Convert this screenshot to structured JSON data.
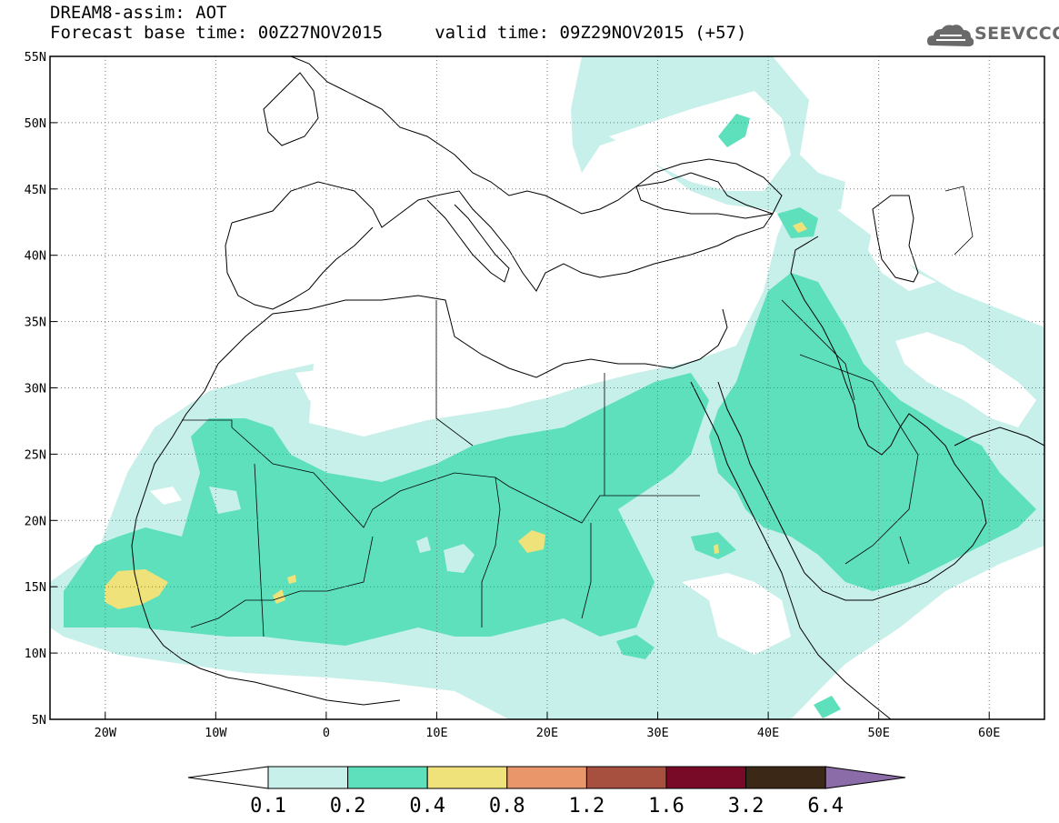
{
  "header": {
    "line1": "DREAM8-assim: AOT",
    "line2": "Forecast base time: 00Z27NOV2015     valid time: 09Z29NOV2015 (+57)"
  },
  "logo": {
    "text": "SEEVCCC",
    "icon": "cloud-icon"
  },
  "axes": {
    "lat_labels": [
      "55N",
      "50N",
      "45N",
      "40N",
      "35N",
      "30N",
      "25N",
      "20N",
      "15N",
      "10N",
      "5N"
    ],
    "lat_values": [
      55,
      50,
      45,
      40,
      35,
      30,
      25,
      20,
      15,
      10,
      5
    ],
    "lon_labels": [
      "20W",
      "10W",
      "0",
      "10E",
      "20E",
      "30E",
      "40E",
      "50E",
      "60E"
    ],
    "lon_values": [
      -20,
      -10,
      0,
      10,
      20,
      30,
      40,
      50,
      60
    ],
    "lon_range": [
      -25,
      65
    ],
    "lat_range": [
      5,
      55
    ],
    "grid": true
  },
  "colorbar": {
    "labels": [
      "0.1",
      "0.2",
      "0.4",
      "0.8",
      "1.2",
      "1.6",
      "3.2",
      "6.4"
    ],
    "colors": [
      "#c8f0ea",
      "#5ee0bc",
      "#f0e27a",
      "#e8966a",
      "#a85040",
      "#780a28",
      "#3c2816"
    ],
    "under_color": "#ffffff",
    "over_color": "#8c6ca8"
  },
  "fields": {
    "light_color": "#c8f0ea",
    "mid_color": "#5ee0bc",
    "high_color": "#f0e27a"
  }
}
